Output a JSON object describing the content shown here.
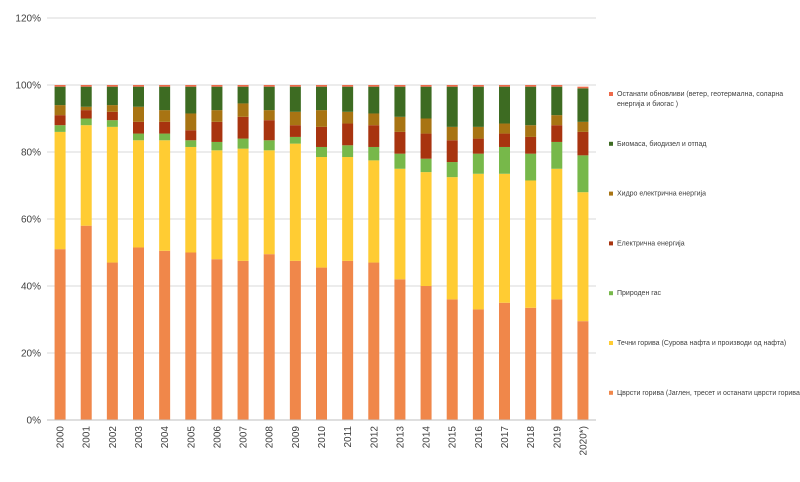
{
  "chart_data": {
    "type": "bar",
    "stacked": true,
    "title": "",
    "xlabel": "",
    "ylabel": "",
    "ylim": [
      0,
      120
    ],
    "yticks": [
      "0%",
      "20%",
      "40%",
      "60%",
      "80%",
      "100%",
      "120%"
    ],
    "grid": true,
    "legend_position": "right",
    "categories": [
      "2000",
      "2001",
      "2002",
      "2003",
      "2004",
      "2005",
      "2006",
      "2007",
      "2008",
      "2009",
      "2010",
      "2011",
      "2012",
      "2013",
      "2014",
      "2015",
      "2016",
      "2017",
      "2018",
      "2019",
      "2020*)"
    ],
    "series": [
      {
        "name": "Цврсти горива (Јаглен, тресет и останати цврсти горива)",
        "color": "#f0874a",
        "values": [
          51.0,
          58.0,
          47.0,
          51.5,
          50.5,
          50.0,
          48.0,
          47.5,
          49.5,
          47.5,
          45.5,
          47.5,
          47.0,
          42.0,
          40.0,
          36.0,
          33.0,
          35.0,
          33.5,
          36.0,
          29.5
        ]
      },
      {
        "name": "Течни горива (Сурова нафта и производи од нафта)",
        "color": "#ffcc33",
        "values": [
          35.0,
          30.0,
          40.5,
          32.0,
          33.0,
          31.5,
          32.5,
          33.5,
          31.0,
          35.0,
          33.0,
          31.0,
          30.5,
          33.0,
          34.0,
          36.5,
          40.5,
          38.5,
          38.0,
          39.0,
          38.5
        ]
      },
      {
        "name": "Природен гас",
        "color": "#77b84a",
        "values": [
          2.0,
          2.0,
          2.0,
          2.0,
          2.0,
          2.0,
          2.5,
          3.0,
          3.0,
          2.0,
          3.0,
          3.5,
          4.0,
          4.5,
          4.0,
          4.5,
          6.0,
          8.0,
          8.0,
          8.0,
          11.0
        ]
      },
      {
        "name": "Електрична енергија",
        "color": "#a8340f",
        "values": [
          3.0,
          2.5,
          2.5,
          3.5,
          3.5,
          3.0,
          6.0,
          6.5,
          6.0,
          3.5,
          6.0,
          6.5,
          6.5,
          6.5,
          7.5,
          6.5,
          4.5,
          4.0,
          5.0,
          5.0,
          7.0
        ]
      },
      {
        "name": "Хидро електрична енергија",
        "color": "#a87413",
        "values": [
          3.0,
          1.0,
          2.0,
          4.5,
          3.5,
          5.0,
          3.5,
          4.0,
          3.0,
          4.0,
          5.0,
          3.5,
          3.5,
          4.5,
          4.5,
          4.0,
          3.5,
          3.0,
          3.5,
          3.0,
          3.0
        ]
      },
      {
        "name": "Биомаса, биодизел и отпад",
        "color": "#3d6b22",
        "values": [
          5.5,
          6.0,
          5.5,
          6.0,
          7.0,
          8.0,
          7.0,
          5.0,
          7.0,
          7.5,
          7.0,
          7.5,
          8.0,
          9.0,
          9.5,
          12.0,
          12.0,
          11.0,
          11.5,
          8.5,
          10.0
        ]
      },
      {
        "name": "Останати обновливи (ветер, геотермална, соларна енергија и биогас)",
        "color": "#ee6a4a",
        "values": [
          0.5,
          0.5,
          0.5,
          0.5,
          0.5,
          0.5,
          0.5,
          0.5,
          0.5,
          0.5,
          0.5,
          0.5,
          0.5,
          0.5,
          0.5,
          0.5,
          0.5,
          0.5,
          0.5,
          0.5,
          0.5
        ]
      }
    ],
    "legend": [
      [
        "Останати обновливи (ветер, геотермална, соларна",
        "енергија и биогас )"
      ],
      [
        "Биомаса, биодизел и отпад"
      ],
      [
        "Хидро електрична енергија"
      ],
      [
        "Електрична енергија"
      ],
      [
        "Природен гас"
      ],
      [
        "Течни горива (Сурова нафта и производи од нафта)"
      ],
      [
        "Цврсти горива (Јаглен, тресет и останати цврсти горива)"
      ]
    ],
    "legend_colors": [
      "#ee6a4a",
      "#3d6b22",
      "#a87413",
      "#a8340f",
      "#77b84a",
      "#ffcc33",
      "#f0874a"
    ]
  }
}
